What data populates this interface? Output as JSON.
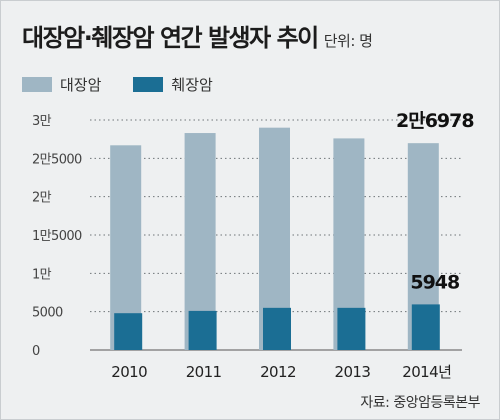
{
  "header": {
    "title": "대장암·췌장암 연간 발생자 추이",
    "unit": "단위: 명"
  },
  "source": "자료: 중앙암등록본부",
  "chart_data": {
    "type": "bar",
    "categories": [
      "2010",
      "2011",
      "2012",
      "2013",
      "2014년"
    ],
    "series": [
      {
        "name": "대장암",
        "color": "#9fb6c4",
        "values": [
          26700,
          28300,
          29000,
          27600,
          26978
        ]
      },
      {
        "name": "췌장암",
        "color": "#1b6e94",
        "values": [
          4800,
          5100,
          5500,
          5500,
          5948
        ]
      }
    ],
    "ylim": [
      0,
      30000
    ],
    "yticks": [
      0,
      5000,
      10000,
      15000,
      20000,
      25000,
      30000
    ],
    "ytick_labels": [
      "0",
      "5000",
      "1만",
      "1만5000",
      "2만",
      "2만5000",
      "3만"
    ],
    "data_labels": [
      {
        "series": 0,
        "index": 4,
        "text": "2만6978"
      },
      {
        "series": 1,
        "index": 4,
        "text": "5948"
      }
    ],
    "grid": true,
    "grid_style": "dotted",
    "legend": "top-left"
  }
}
